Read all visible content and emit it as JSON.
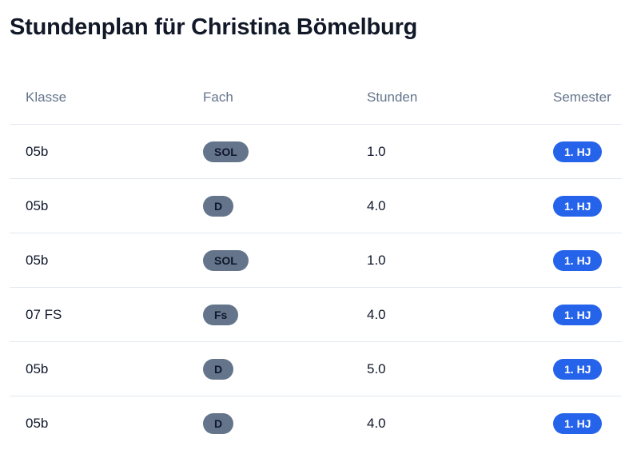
{
  "page": {
    "title": "Stundenplan für Christina Bömelburg"
  },
  "table": {
    "headers": {
      "klasse": "Klasse",
      "fach": "Fach",
      "stunden": "Stunden",
      "semester": "Semester"
    },
    "rows": [
      {
        "klasse": "05b",
        "fach": "SOL",
        "stunden": "1.0",
        "semester": "1. HJ"
      },
      {
        "klasse": "05b",
        "fach": "D",
        "stunden": "4.0",
        "semester": "1. HJ"
      },
      {
        "klasse": "05b",
        "fach": "SOL",
        "stunden": "1.0",
        "semester": "1. HJ"
      },
      {
        "klasse": "07 FS",
        "fach": "Fs",
        "stunden": "4.0",
        "semester": "1. HJ"
      },
      {
        "klasse": "05b",
        "fach": "D",
        "stunden": "5.0",
        "semester": "1. HJ"
      },
      {
        "klasse": "05b",
        "fach": "D",
        "stunden": "4.0",
        "semester": "1. HJ"
      }
    ]
  },
  "colors": {
    "fach_badge": "#64748b",
    "semester_badge": "#2563eb",
    "header_text": "#64748b"
  }
}
